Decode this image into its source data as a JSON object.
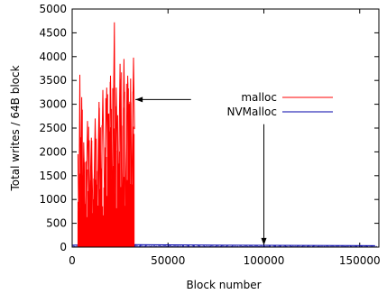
{
  "chart_data": {
    "type": "line",
    "title": "",
    "xlabel": "Block number",
    "ylabel": "Total writes / 64B block",
    "xlim": [
      0,
      160000
    ],
    "ylim": [
      0,
      5000
    ],
    "x_ticks": [
      0,
      50000,
      100000,
      150000
    ],
    "y_ticks": [
      0,
      500,
      1000,
      1500,
      2000,
      2500,
      3000,
      3500,
      4000,
      4500,
      5000
    ],
    "grid": false,
    "legend_position": "top-right",
    "series": [
      {
        "name": "malloc",
        "color": "#ff0000",
        "x": [
          3000,
          3500,
          4000,
          4500,
          5000,
          5500,
          6000,
          7000,
          8000,
          9000,
          10000,
          11000,
          12000,
          13000,
          14000,
          15000,
          16000,
          17000,
          18000,
          19000,
          20000,
          21000,
          22000,
          22500,
          23000,
          24000,
          25000,
          26000,
          27000,
          28000,
          29000,
          30000,
          30500,
          31000,
          32000,
          32500
        ],
        "values": [
          1950,
          300,
          3620,
          400,
          3150,
          500,
          2200,
          300,
          2650,
          600,
          2300,
          350,
          2700,
          500,
          3050,
          600,
          3300,
          700,
          3350,
          400,
          3600,
          800,
          4720,
          600,
          3350,
          700,
          3850,
          500,
          3950,
          600,
          3600,
          500,
          3540,
          900,
          3980,
          2480
        ]
      },
      {
        "name": "NVMalloc",
        "color": "#0000aa",
        "x": [
          0,
          20000,
          40000,
          60000,
          80000,
          100000,
          120000,
          140000,
          158000
        ],
        "values": [
          40,
          55,
          50,
          45,
          40,
          38,
          36,
          35,
          30
        ]
      }
    ],
    "annotations": [
      {
        "type": "arrow",
        "from_data": [
          62000,
          3100
        ],
        "to_data": [
          33000,
          3100
        ]
      },
      {
        "type": "arrow",
        "from_data": [
          100000,
          2580
        ],
        "to_data": [
          100000,
          40
        ]
      }
    ]
  }
}
